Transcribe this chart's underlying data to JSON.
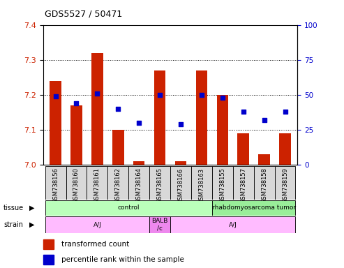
{
  "title": "GDS5527 / 50471",
  "samples": [
    "GSM738156",
    "GSM738160",
    "GSM738161",
    "GSM738162",
    "GSM738164",
    "GSM738165",
    "GSM738166",
    "GSM738163",
    "GSM738155",
    "GSM738157",
    "GSM738158",
    "GSM738159"
  ],
  "bar_values": [
    7.24,
    7.17,
    7.32,
    7.1,
    7.01,
    7.27,
    7.01,
    7.27,
    7.2,
    7.09,
    7.03,
    7.09
  ],
  "dot_values": [
    49,
    44,
    51,
    40,
    30,
    50,
    29,
    50,
    48,
    38,
    32,
    38
  ],
  "ylim_left": [
    7.0,
    7.4
  ],
  "ylim_right": [
    0,
    100
  ],
  "yticks_left": [
    7.0,
    7.1,
    7.2,
    7.3,
    7.4
  ],
  "yticks_right": [
    0,
    25,
    50,
    75,
    100
  ],
  "bar_color": "#cc2200",
  "dot_color": "#0000cc",
  "tissue_groups": [
    {
      "label": "control",
      "start": 0,
      "end": 8,
      "color": "#bbffbb"
    },
    {
      "label": "rhabdomyosarcoma tumor",
      "start": 8,
      "end": 12,
      "color": "#99ee99"
    }
  ],
  "strain_groups": [
    {
      "label": "A/J",
      "start": 0,
      "end": 5,
      "color": "#ffbbff"
    },
    {
      "label": "BALB\n/c",
      "start": 5,
      "end": 6,
      "color": "#ee88ee"
    },
    {
      "label": "A/J",
      "start": 6,
      "end": 12,
      "color": "#ffbbff"
    }
  ],
  "bar_color_legend": "#cc2200",
  "dot_color_legend": "#0000cc",
  "bar_width": 0.55,
  "axis_color_left": "#cc2200",
  "axis_color_right": "#0000cc"
}
